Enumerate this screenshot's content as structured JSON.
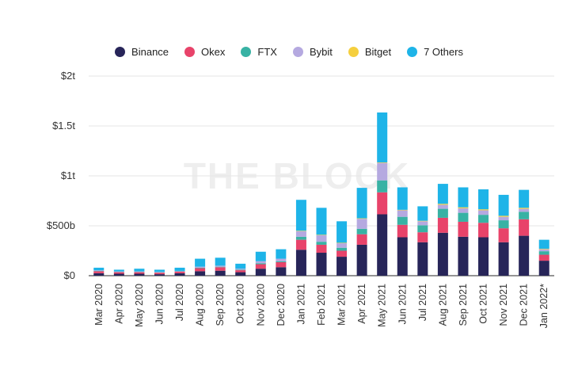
{
  "chart_data": {
    "type": "bar",
    "stacked": true,
    "title": "",
    "xlabel": "",
    "ylabel": "",
    "watermark": "THE BLOCK",
    "ylim": [
      0,
      2000
    ],
    "y_ticks": [
      {
        "value": 0,
        "label": "$0"
      },
      {
        "value": 500,
        "label": "$500b"
      },
      {
        "value": 1000,
        "label": "$1t"
      },
      {
        "value": 1500,
        "label": "$1.5t"
      },
      {
        "value": 2000,
        "label": "$2t"
      }
    ],
    "grid": true,
    "legend_position": "top-center",
    "categories": [
      "Mar 2020",
      "Apr 2020",
      "May 2020",
      "Jun 2020",
      "Jul 2020",
      "Aug 2020",
      "Sep 2020",
      "Oct 2020",
      "Nov 2020",
      "Dec 2020",
      "Jan 2021",
      "Feb 2021",
      "Mar 2021",
      "Apr 2021",
      "May 2021",
      "Jun 2021",
      "Jul 2021",
      "Aug 2021",
      "Sep 2021",
      "Oct 2021",
      "Nov 2021",
      "Dec 2021",
      "Jan 2022*"
    ],
    "series": [
      {
        "name": "Binance",
        "color": "#272559",
        "values": [
          25,
          20,
          20,
          15,
          25,
          45,
          50,
          35,
          70,
          85,
          260,
          230,
          190,
          310,
          615,
          385,
          335,
          430,
          390,
          385,
          335,
          400,
          150
        ]
      },
      {
        "name": "Okex",
        "color": "#e8436a",
        "values": [
          20,
          15,
          15,
          15,
          15,
          30,
          35,
          20,
          45,
          50,
          100,
          80,
          60,
          105,
          220,
          125,
          100,
          150,
          150,
          145,
          140,
          165,
          60
        ]
      },
      {
        "name": "FTX",
        "color": "#38b2a4",
        "values": [
          3,
          3,
          3,
          3,
          3,
          5,
          5,
          5,
          10,
          10,
          30,
          30,
          30,
          55,
          120,
          80,
          70,
          90,
          90,
          80,
          80,
          75,
          35
        ]
      },
      {
        "name": "Bybit",
        "color": "#b5a9e0",
        "values": [
          5,
          5,
          5,
          5,
          5,
          10,
          10,
          10,
          20,
          25,
          55,
          65,
          45,
          100,
          175,
          65,
          40,
          40,
          45,
          45,
          35,
          30,
          20
        ]
      },
      {
        "name": "Bitget",
        "color": "#f5cf3e",
        "values": [
          0,
          0,
          0,
          0,
          0,
          0,
          0,
          0,
          0,
          0,
          5,
          5,
          5,
          5,
          5,
          5,
          5,
          10,
          10,
          10,
          10,
          10,
          5
        ]
      },
      {
        "name": "7 Others",
        "color": "#1eb4e8",
        "values": [
          27,
          17,
          27,
          22,
          32,
          80,
          80,
          50,
          95,
          95,
          310,
          270,
          215,
          305,
          500,
          225,
          145,
          200,
          200,
          200,
          210,
          180,
          90
        ]
      }
    ]
  }
}
